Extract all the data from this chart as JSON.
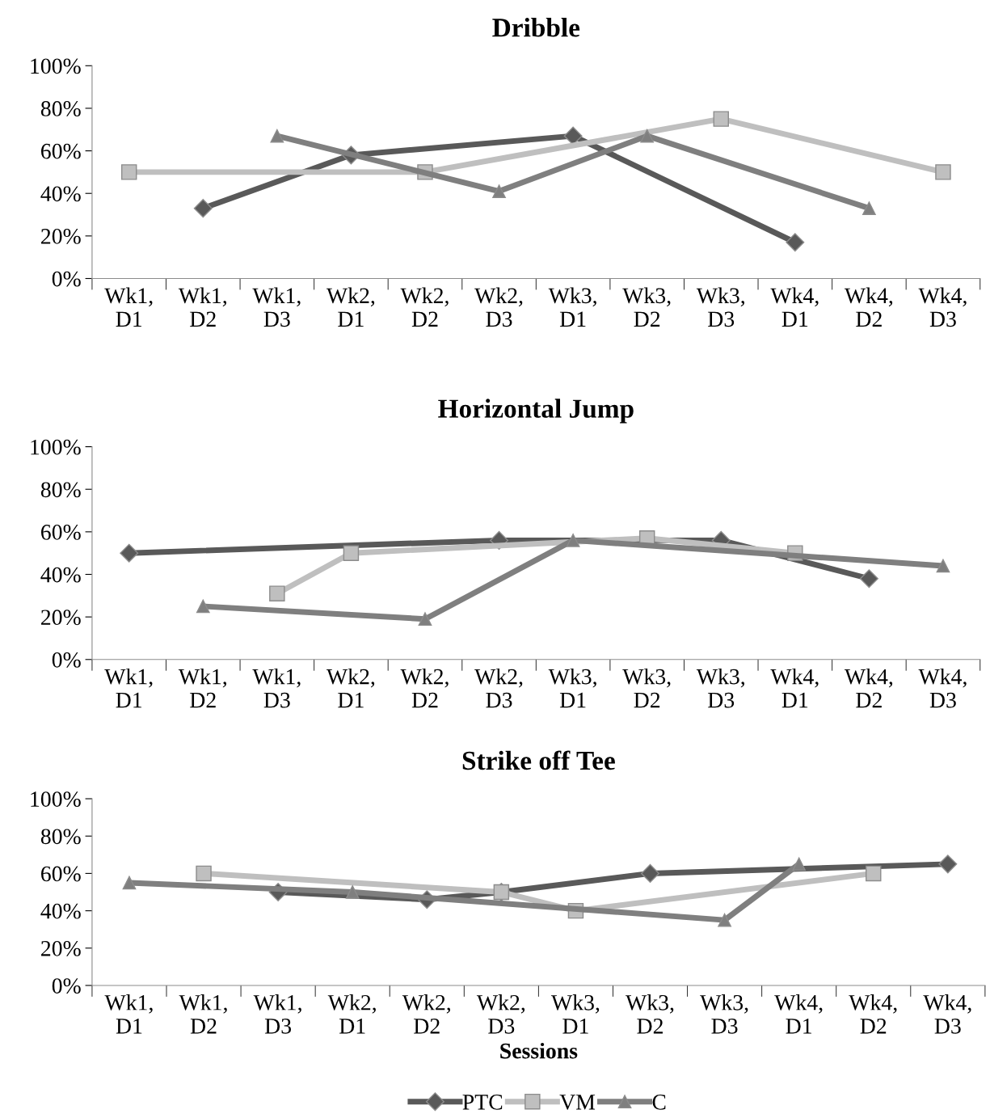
{
  "chart_data": [
    {
      "type": "line",
      "title": "Dribble",
      "categories": [
        "Wk1,\nD1",
        "Wk1,\nD2",
        "Wk1,\nD3",
        "Wk2,\nD1",
        "Wk2,\nD2",
        "Wk2,\nD3",
        "Wk3,\nD1",
        "Wk3,\nD2",
        "Wk3,\nD3",
        "Wk4,\nD1",
        "Wk4,\nD2",
        "Wk4,\nD3"
      ],
      "ylim": [
        0,
        100
      ],
      "yticks": [
        {
          "value": 0,
          "label": "0%"
        },
        {
          "value": 20,
          "label": "20%"
        },
        {
          "value": 40,
          "label": "40%"
        },
        {
          "value": 60,
          "label": "60%"
        },
        {
          "value": 80,
          "label": "80%"
        },
        {
          "value": 100,
          "label": "100%"
        }
      ],
      "grid": false,
      "legend": false,
      "series": [
        {
          "color": "#595959",
          "marker": "diamond",
          "values": [
            null,
            33,
            null,
            58,
            null,
            null,
            67,
            null,
            null,
            17,
            null,
            null
          ]
        },
        {
          "color": "#bfbfbf",
          "marker": "square",
          "values": [
            50,
            null,
            null,
            null,
            50,
            null,
            null,
            null,
            75,
            null,
            null,
            50
          ]
        },
        {
          "color": "#7f7f7f",
          "marker": "triangle",
          "values": [
            null,
            null,
            67,
            null,
            null,
            41,
            null,
            67,
            null,
            null,
            33,
            null
          ]
        }
      ]
    },
    {
      "type": "line",
      "title": "Horizontal Jump",
      "categories": [
        "Wk1,\nD1",
        "Wk1,\nD2",
        "Wk1,\nD3",
        "Wk2,\nD1",
        "Wk2,\nD2",
        "Wk2,\nD3",
        "Wk3,\nD1",
        "Wk3,\nD2",
        "Wk3,\nD3",
        "Wk4,\nD1",
        "Wk4,\nD2",
        "Wk4,\nD3"
      ],
      "ylim": [
        0,
        100
      ],
      "yticks": [
        {
          "value": 0,
          "label": "0%"
        },
        {
          "value": 20,
          "label": "20%"
        },
        {
          "value": 40,
          "label": "40%"
        },
        {
          "value": 60,
          "label": "60%"
        },
        {
          "value": 80,
          "label": "80%"
        },
        {
          "value": 100,
          "label": "100%"
        }
      ],
      "grid": false,
      "legend": false,
      "series": [
        {
          "color": "#595959",
          "marker": "diamond",
          "values": [
            50,
            null,
            null,
            null,
            null,
            56,
            null,
            null,
            56,
            null,
            38,
            null
          ]
        },
        {
          "color": "#bfbfbf",
          "marker": "square",
          "values": [
            null,
            null,
            31,
            50,
            null,
            null,
            null,
            57,
            null,
            50,
            null,
            null
          ]
        },
        {
          "color": "#7f7f7f",
          "marker": "triangle",
          "values": [
            null,
            25,
            null,
            null,
            19,
            null,
            56,
            null,
            null,
            null,
            null,
            44
          ]
        }
      ]
    },
    {
      "type": "line",
      "title": "Strike off Tee",
      "xlabel": "Sessions",
      "categories": [
        "Wk1,\nD1",
        "Wk1,\nD2",
        "Wk1,\nD3",
        "Wk2,\nD1",
        "Wk2,\nD2",
        "Wk2,\nD3",
        "Wk3,\nD1",
        "Wk3,\nD2",
        "Wk3,\nD3",
        "Wk4,\nD1",
        "Wk4,\nD2",
        "Wk4,\nD3"
      ],
      "ylim": [
        0,
        100
      ],
      "yticks": [
        {
          "value": 0,
          "label": "0%"
        },
        {
          "value": 20,
          "label": "20%"
        },
        {
          "value": 40,
          "label": "40%"
        },
        {
          "value": 60,
          "label": "60%"
        },
        {
          "value": 80,
          "label": "80%"
        },
        {
          "value": 100,
          "label": "100%"
        }
      ],
      "grid": false,
      "legend": "bottom",
      "series": [
        {
          "name": "PTC",
          "color": "#595959",
          "marker": "diamond",
          "values": [
            null,
            null,
            50,
            null,
            46,
            50,
            null,
            60,
            null,
            null,
            null,
            65
          ]
        },
        {
          "name": "VM",
          "color": "#bfbfbf",
          "marker": "square",
          "values": [
            null,
            60,
            null,
            null,
            null,
            50,
            40,
            null,
            null,
            null,
            60,
            null
          ]
        },
        {
          "name": "C",
          "color": "#7f7f7f",
          "marker": "triangle",
          "values": [
            55,
            null,
            null,
            50,
            null,
            null,
            null,
            null,
            35,
            65,
            null,
            null
          ]
        }
      ]
    }
  ]
}
